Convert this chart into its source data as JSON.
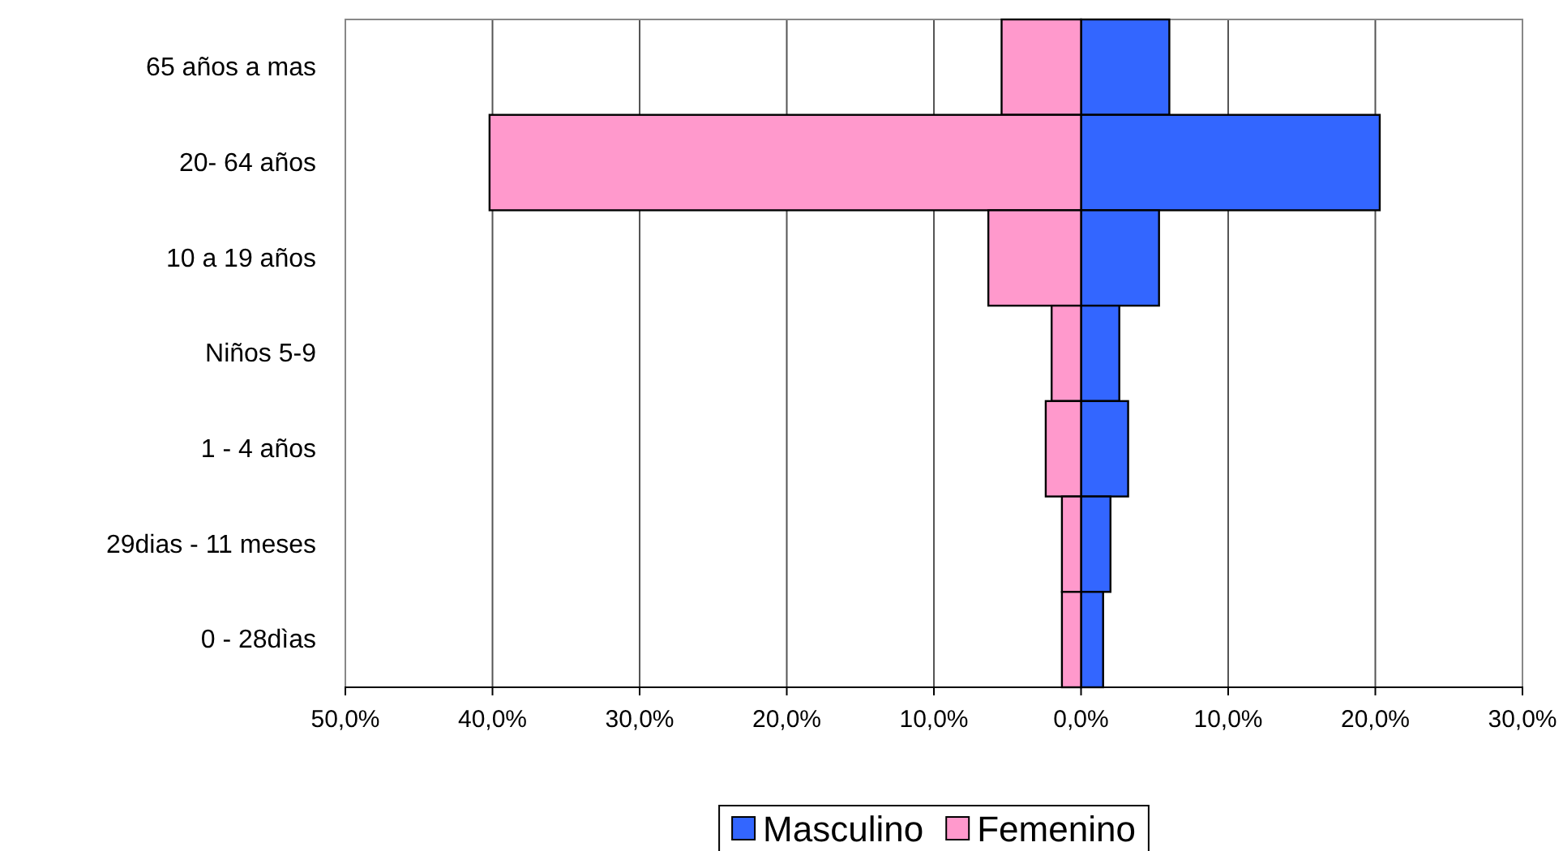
{
  "chart_data": {
    "type": "bar",
    "orientation": "horizontal",
    "stacked": true,
    "categories": [
      "65 años a mas",
      "20- 64 años",
      "10 a 19 años",
      "Niños 5-9",
      "1 - 4 años",
      "29dias -  11 meses",
      "0 - 28dìas"
    ],
    "series": [
      {
        "name": "Masculino",
        "color": "#3366ff",
        "values": [
          6.0,
          20.3,
          5.3,
          2.6,
          3.2,
          2.0,
          1.5
        ]
      },
      {
        "name": "Femenino",
        "color": "#ff99cc",
        "values": [
          -5.4,
          -40.2,
          -6.3,
          -2.0,
          -2.4,
          -1.3,
          -1.3
        ]
      }
    ],
    "xlim": [
      -50,
      30
    ],
    "xticks": [
      {
        "value": -50,
        "label": "50,0%"
      },
      {
        "value": -40,
        "label": "40,0%"
      },
      {
        "value": -30,
        "label": "30,0%"
      },
      {
        "value": -20,
        "label": "20,0%"
      },
      {
        "value": -10,
        "label": "10,0%"
      },
      {
        "value": 0,
        "label": "0,0%"
      },
      {
        "value": 10,
        "label": "10,0%"
      },
      {
        "value": 20,
        "label": "20,0%"
      },
      {
        "value": 30,
        "label": "30,0%"
      }
    ],
    "grid": "x",
    "legend": "bottom"
  }
}
